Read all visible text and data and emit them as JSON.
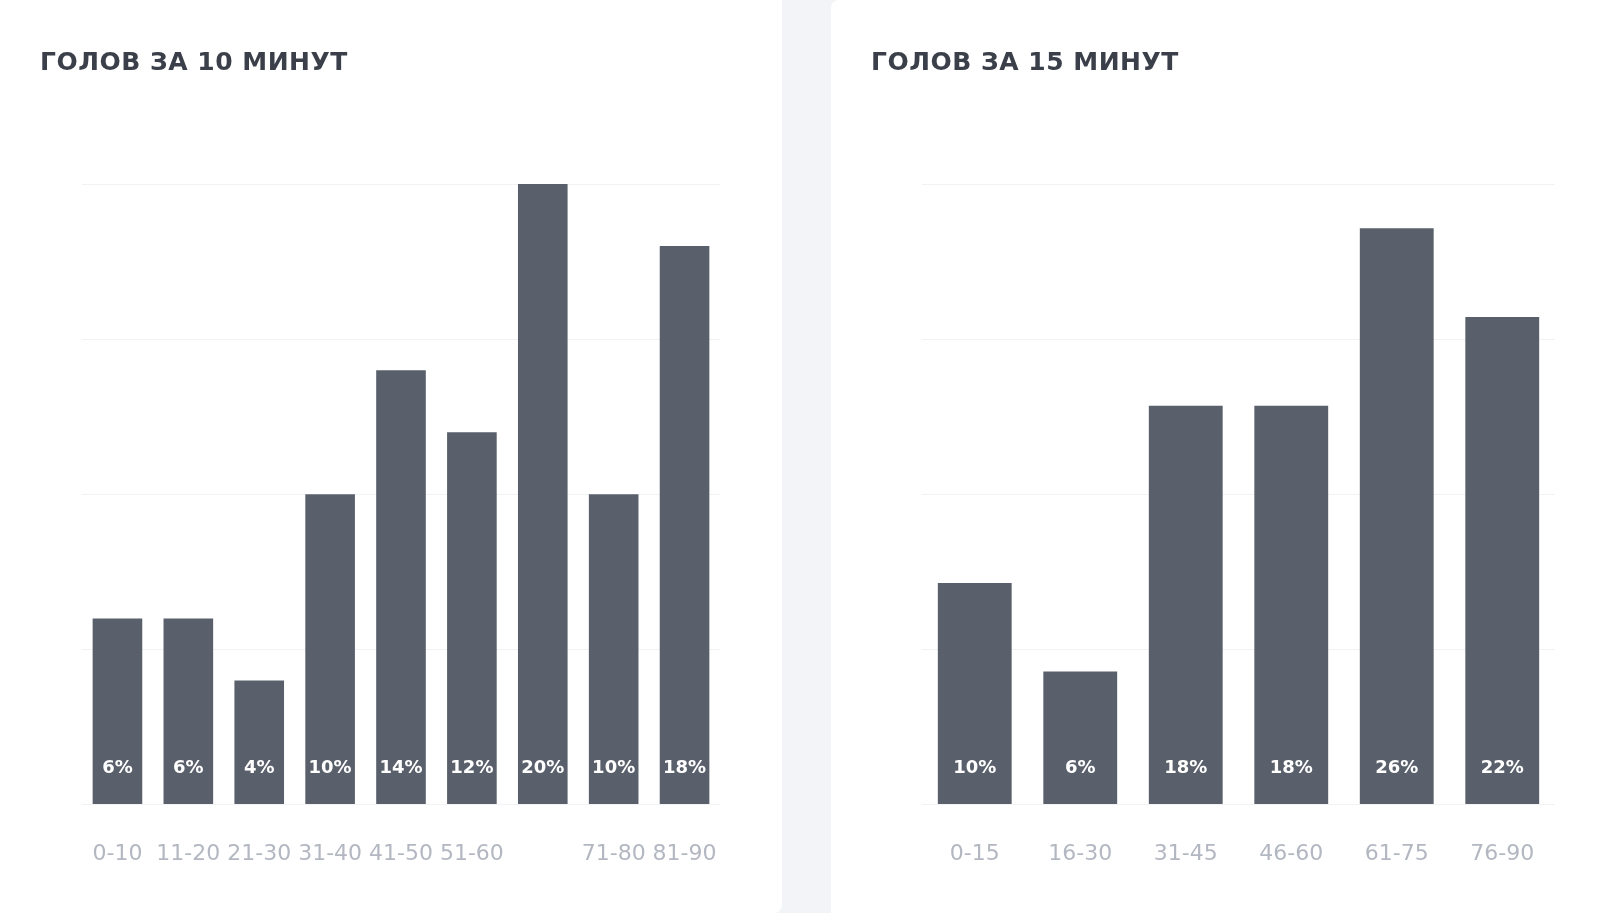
{
  "chart_data": [
    {
      "type": "bar",
      "title": "ГОЛОВ ЗА 10 МИНУТ",
      "categories": [
        "0-10",
        "11-20",
        "21-30",
        "31-40",
        "41-50",
        "51-60",
        null,
        "71-80",
        "81-90"
      ],
      "values": [
        6,
        6,
        4,
        10,
        14,
        12,
        20,
        10,
        18
      ],
      "color": "#5a606b",
      "value_labels": [
        "6%",
        "6%",
        "4%",
        "10%",
        "14%",
        "12%",
        "20%",
        "10%",
        "18%"
      ],
      "ylim": [
        0,
        20
      ],
      "yticks": [
        {
          "value": 0,
          "label": null
        },
        {
          "value": 5,
          "label": null
        },
        {
          "value": 10,
          "label": null
        },
        {
          "value": 15,
          "label": null
        },
        {
          "value": 20,
          "label": null
        }
      ],
      "grid": "y",
      "tick_labels": "x",
      "legend": false
    },
    {
      "type": "bar",
      "title": "ГОЛОВ ЗА 15 МИНУТ",
      "categories": [
        "0-15",
        "16-30",
        "31-45",
        "46-60",
        "61-75",
        "76-90"
      ],
      "values": [
        10,
        6,
        18,
        18,
        26,
        22
      ],
      "color": "#5a606b",
      "value_labels": [
        "10%",
        "6%",
        "18%",
        "18%",
        "26%",
        "22%"
      ],
      "ylim": [
        0,
        28
      ],
      "yticks": [
        {
          "value": 0,
          "label": null
        },
        {
          "value": 7,
          "label": null
        },
        {
          "value": 14,
          "label": null
        },
        {
          "value": 21,
          "label": null
        },
        {
          "value": 28,
          "label": null
        }
      ],
      "grid": "y",
      "tick_labels": "x",
      "legend": false
    }
  ]
}
